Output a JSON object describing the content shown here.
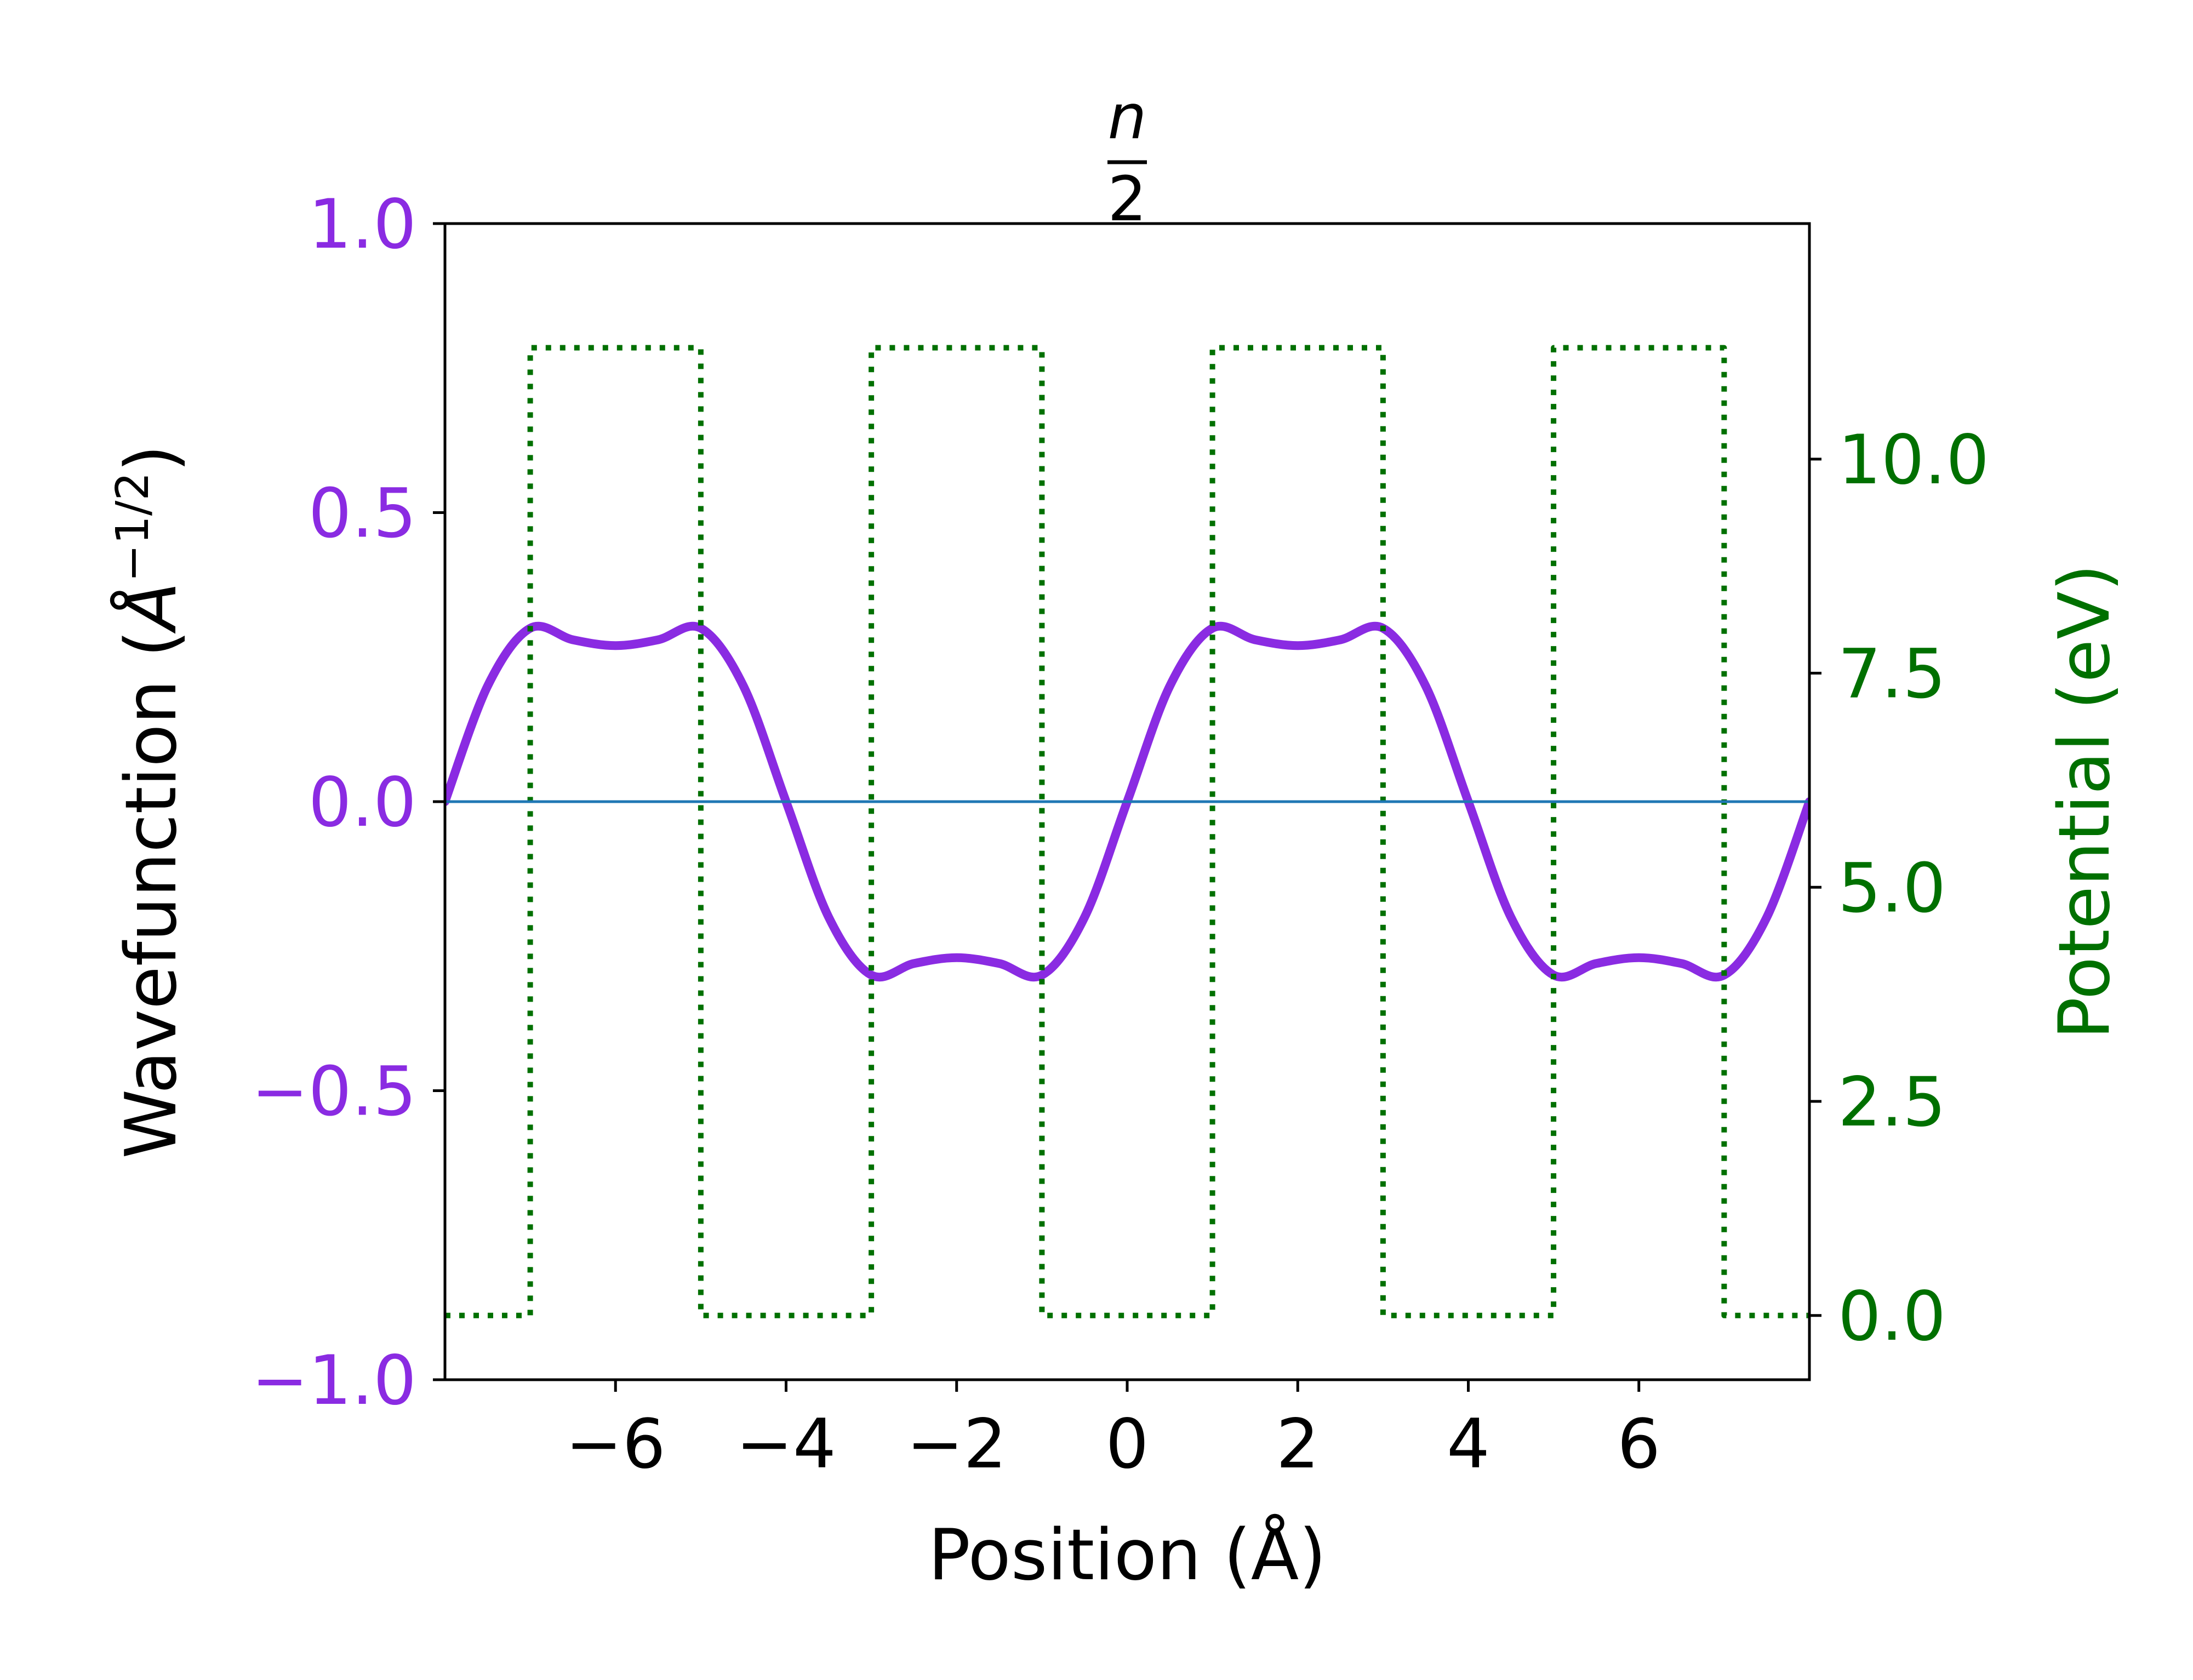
{
  "chart_data": {
    "type": "line",
    "title": {
      "numerator": "n",
      "denominator": "2"
    },
    "xlabel": "Position (Å)",
    "ylabel_left": {
      "prefix": "Wavefunction (",
      "unit": "Å",
      "exponent": "−1/2",
      "suffix": ")"
    },
    "ylabel_right": "Potential (eV)",
    "xlim": [
      -8,
      8
    ],
    "ylim_left": [
      -1.0,
      1.0
    ],
    "ylim_right": [
      -0.75,
      12.75
    ],
    "xticks": [
      {
        "value": -6,
        "label": "−6"
      },
      {
        "value": -4,
        "label": "−4"
      },
      {
        "value": -2,
        "label": "−2"
      },
      {
        "value": 0,
        "label": "0"
      },
      {
        "value": 2,
        "label": "2"
      },
      {
        "value": 4,
        "label": "4"
      },
      {
        "value": 6,
        "label": "6"
      }
    ],
    "yticks_left": [
      {
        "value": -1.0,
        "label": "−1.0"
      },
      {
        "value": -0.5,
        "label": "−0.5"
      },
      {
        "value": 0.0,
        "label": "0.0"
      },
      {
        "value": 0.5,
        "label": "0.5"
      },
      {
        "value": 1.0,
        "label": "1.0"
      }
    ],
    "yticks_right": [
      {
        "value": 0.0,
        "label": "0.0"
      },
      {
        "value": 2.5,
        "label": "2.5"
      },
      {
        "value": 5.0,
        "label": "5.0"
      },
      {
        "value": 7.5,
        "label": "7.5"
      },
      {
        "value": 10.0,
        "label": "10.0"
      }
    ],
    "grid": false,
    "colors": {
      "wavefunction": "#8a2be2",
      "potential": "#007000",
      "zero_line": "#1f77b4",
      "left_tick_labels": "#8a2be2",
      "right_tick_labels": "#007000",
      "axes": "#000000"
    },
    "series": [
      {
        "axis": "left",
        "style": "solid",
        "x": [
          -8,
          -7.5,
          -7,
          -6.5,
          -6,
          -5.5,
          -5,
          -4.5,
          -4,
          -3.5,
          -3,
          -2.5,
          -2,
          -1.5,
          -1,
          -0.5,
          0,
          0.5,
          1,
          1.5,
          2,
          2.5,
          3,
          3.5,
          4,
          4.5,
          5,
          5.5,
          6,
          6.5,
          7,
          7.5,
          8
        ],
        "y": [
          0.0,
          0.2,
          0.3,
          0.28,
          0.27,
          0.28,
          0.3,
          0.2,
          0.0,
          -0.2,
          -0.3,
          -0.28,
          -0.27,
          -0.28,
          -0.3,
          -0.2,
          0.0,
          0.2,
          0.3,
          0.28,
          0.27,
          0.28,
          0.3,
          0.2,
          0.0,
          -0.2,
          -0.3,
          -0.28,
          -0.27,
          -0.28,
          -0.3,
          -0.2,
          0.0
        ]
      },
      {
        "axis": "right",
        "style": "dotted",
        "x": [
          -8,
          -7,
          -7,
          -5,
          -5,
          -3,
          -3,
          -1,
          -1,
          1,
          1,
          3,
          3,
          5,
          5,
          7,
          7,
          8
        ],
        "y": [
          0,
          0,
          11.3,
          11.3,
          0,
          0,
          11.3,
          11.3,
          0,
          0,
          11.3,
          11.3,
          0,
          0,
          11.3,
          11.3,
          0,
          0
        ]
      },
      {
        "axis": "left",
        "style": "thin",
        "x": [
          -8,
          8
        ],
        "y": [
          0,
          0
        ]
      }
    ]
  }
}
